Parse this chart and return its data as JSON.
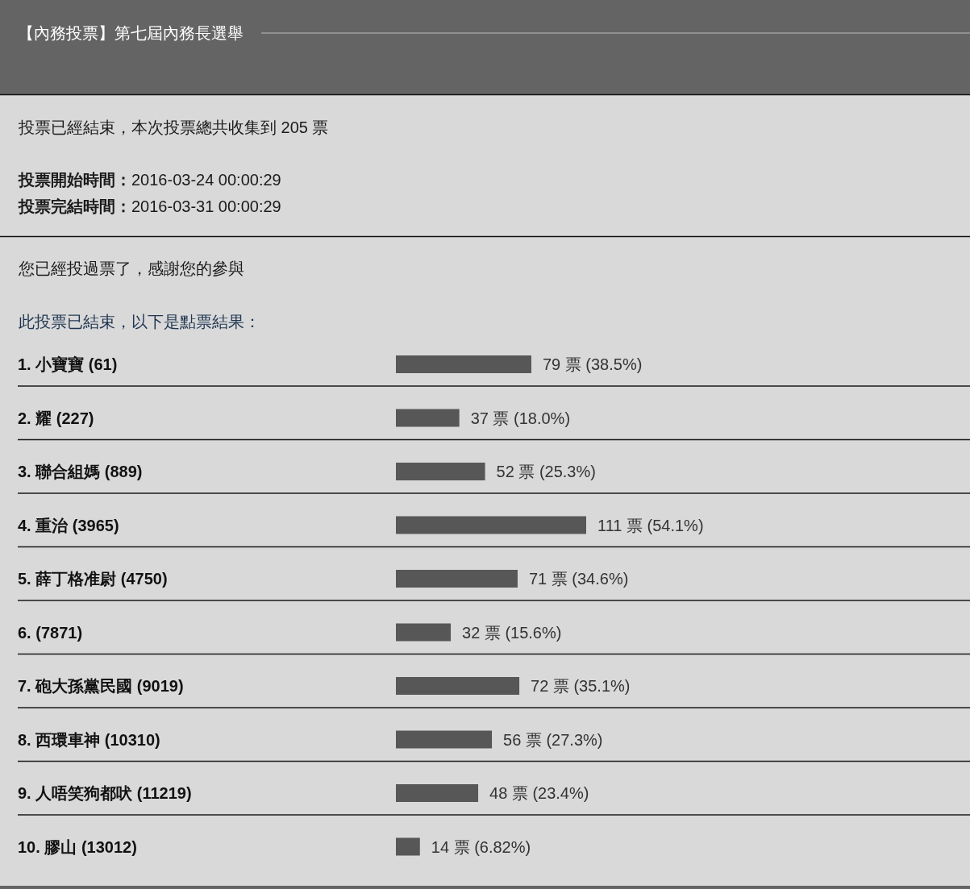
{
  "chart_data": {
    "type": "bar",
    "orientation": "horizontal",
    "title": "【內務投票】第七屆內務長選舉",
    "subtitle": "投票已經結束，本次投票總共收集到 205 票",
    "annotations": [
      "投票開始時間：2016-03-24 00:00:29",
      "投票完結時間：2016-03-31 00:00:29",
      "您已經投過票了，感謝您的參與",
      "此投票已結束，以下是點票結果："
    ],
    "categories": [
      "1. 小寶寶 (61)",
      "2. 耀 (227)",
      "3. 聯合組媽 (889)",
      "4. 重治 (3965)",
      "5. 薛丁格准尉 (4750)",
      "6. (7871)",
      "7. 砲大孫黨民國 (9019)",
      "8. 西環車神 (10310)",
      "9. 人唔笑狗都吠 (11219)",
      "10. 膠山 (13012)"
    ],
    "values": [
      79,
      37,
      52,
      111,
      71,
      32,
      72,
      56,
      48,
      14
    ],
    "value_labels": [
      "79 票 (38.5%)",
      "37 票 (18.0%)",
      "52 票 (25.3%)",
      "111 票 (54.1%)",
      "71 票 (34.6%)",
      "32 票 (15.6%)",
      "72 票 (35.1%)",
      "56 票 (27.3%)",
      "48 票 (23.4%)",
      "14 票 (6.82%)"
    ],
    "color": "#575757"
  }
}
